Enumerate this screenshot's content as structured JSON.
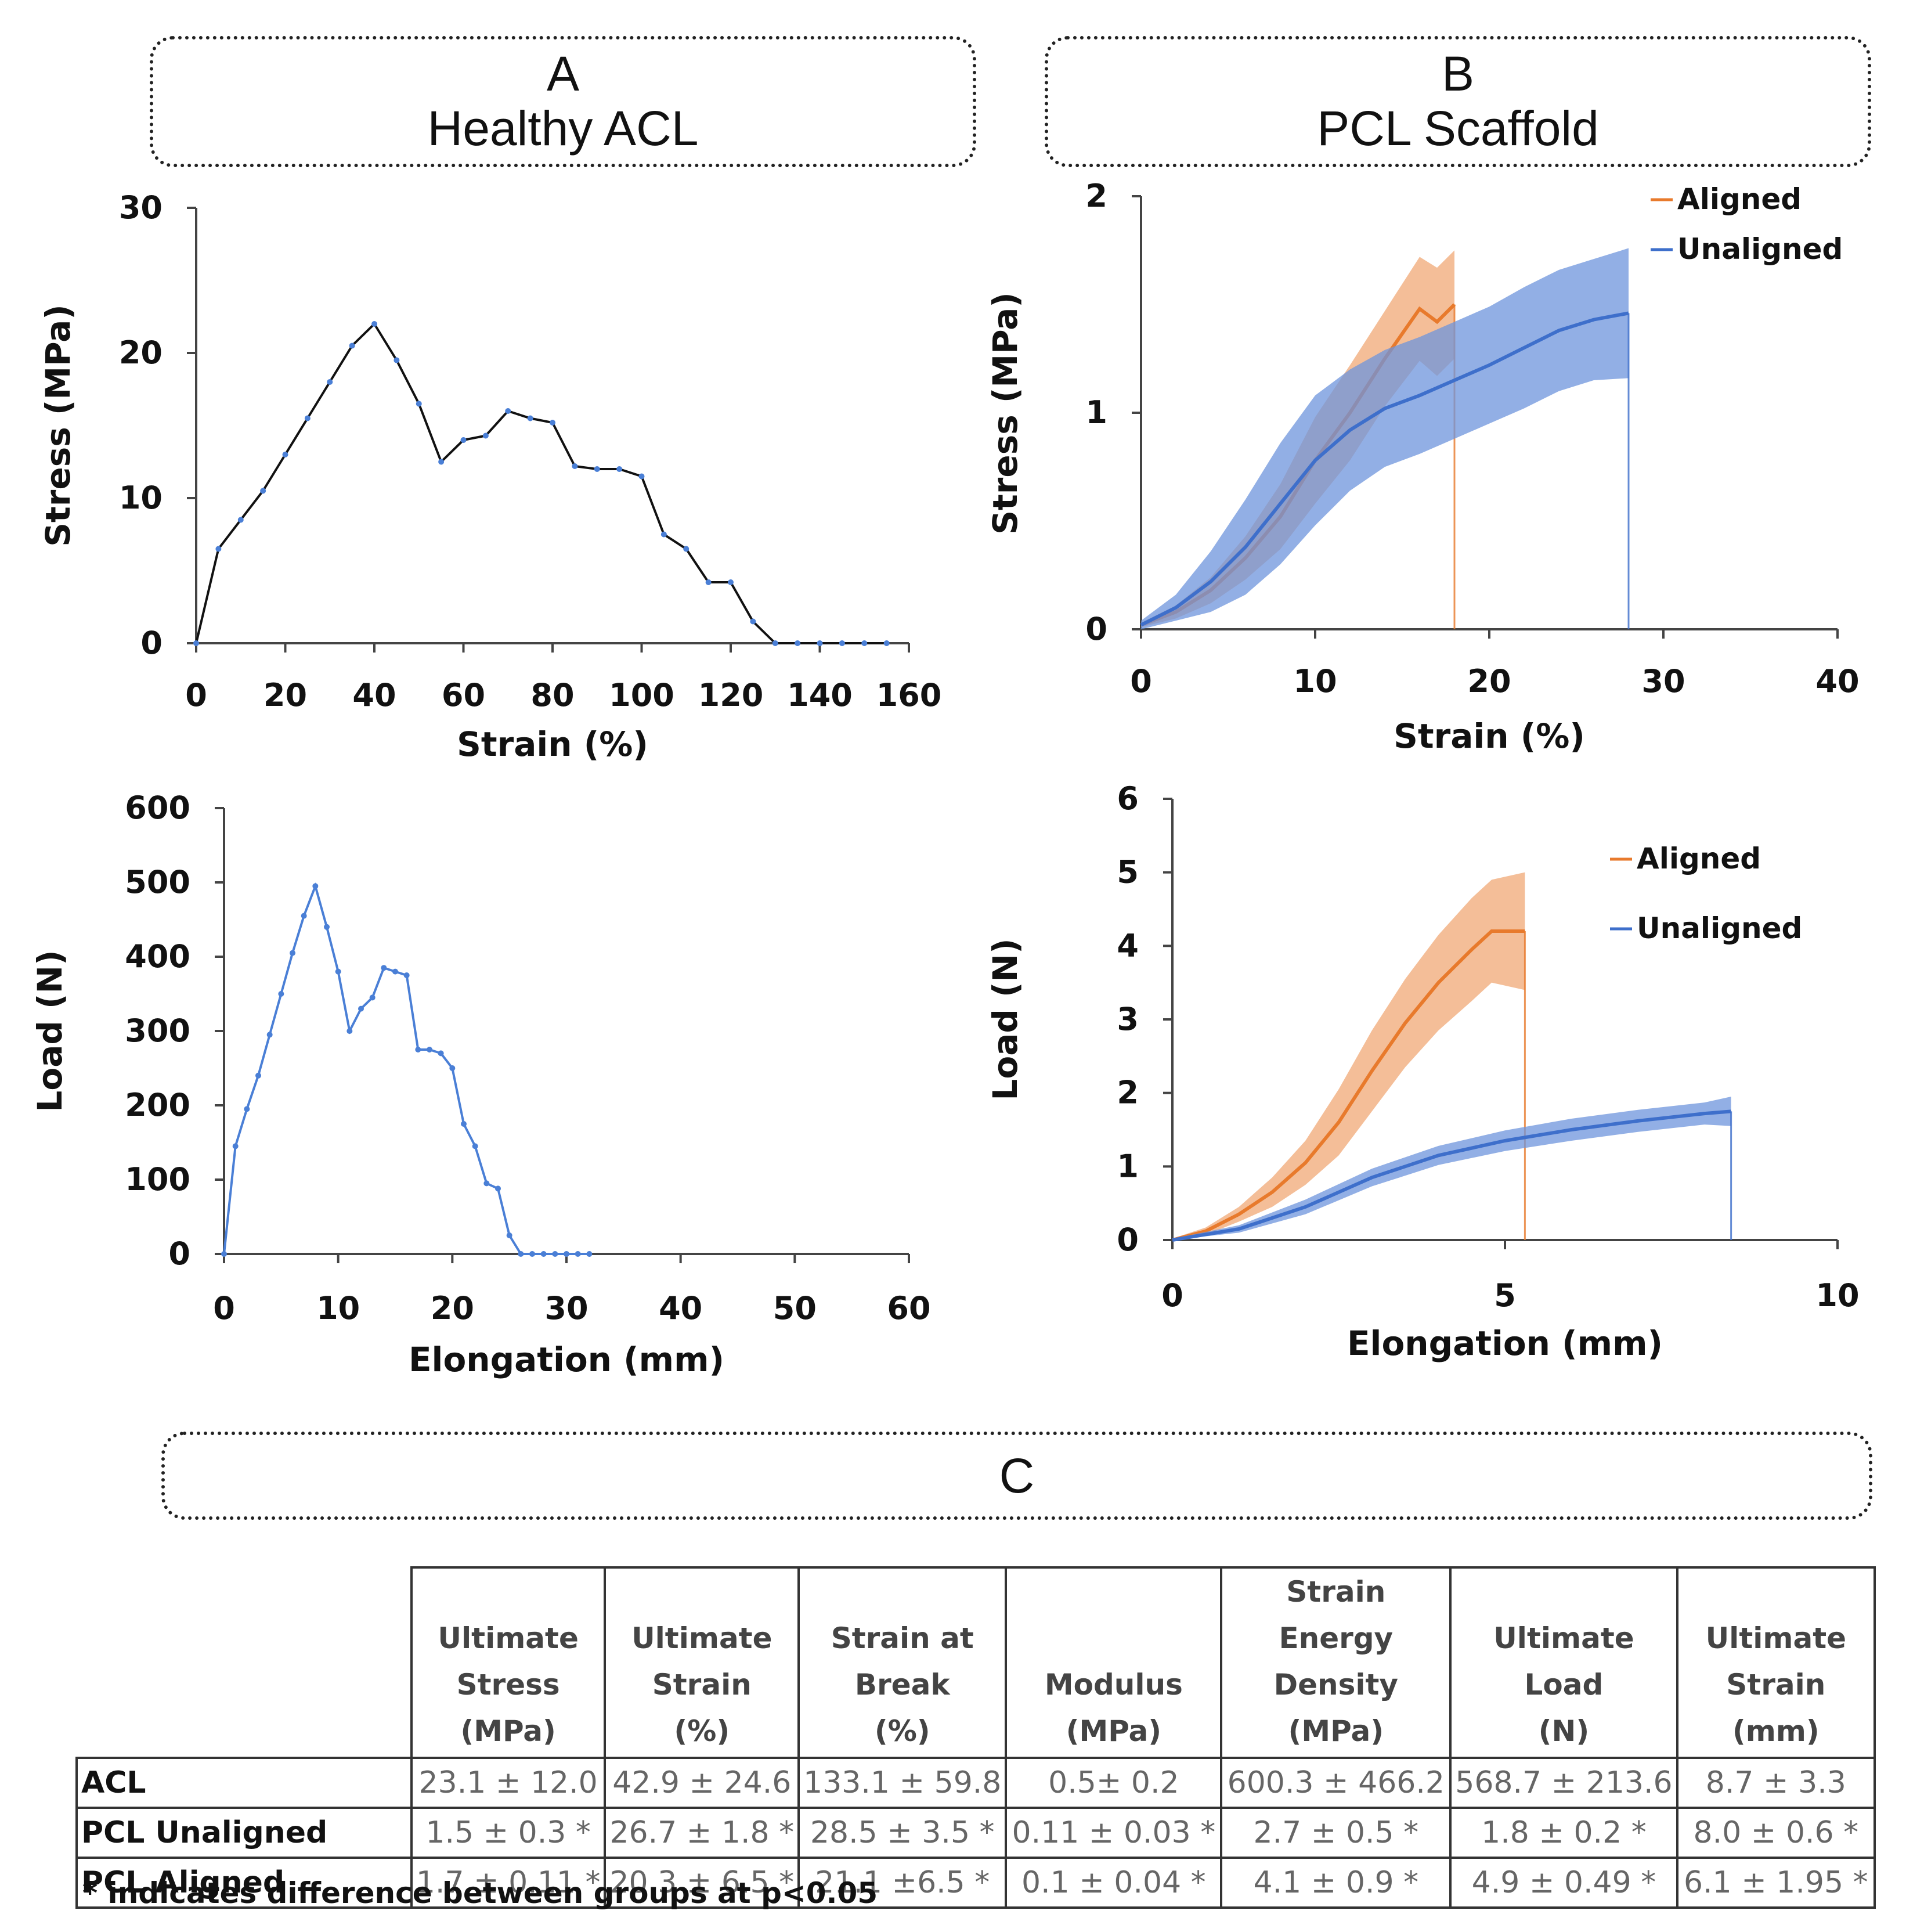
{
  "panels": {
    "a": {
      "letter": "A",
      "title": "Healthy ACL"
    },
    "b": {
      "letter": "B",
      "title": "PCL Scaffold"
    },
    "c": {
      "letter": "C"
    }
  },
  "colors": {
    "orange": "#e87a2c",
    "orange_band": "#f0a875",
    "blue": "#3e6fcb",
    "blue_band": "#6d94dc",
    "blue_marker": "#4a7fd6"
  },
  "chart_data": [
    {
      "id": "acl-stress-strain",
      "type": "line",
      "title": "",
      "xlabel": "Strain (%)",
      "ylabel": "Stress (MPa)",
      "xlim": [
        0,
        160
      ],
      "ylim": [
        0,
        30
      ],
      "xticks": [
        0,
        20,
        40,
        60,
        80,
        100,
        120,
        140,
        160
      ],
      "yticks": [
        0,
        10,
        20,
        30
      ],
      "series": [
        {
          "name": "Healthy ACL",
          "x": [
            0,
            5,
            10,
            15,
            20,
            25,
            30,
            35,
            40,
            45,
            50,
            55,
            60,
            65,
            70,
            75,
            80,
            85,
            90,
            95,
            100,
            105,
            110,
            115,
            120,
            125,
            130,
            135,
            140,
            145,
            150,
            155
          ],
          "y": [
            0,
            6.5,
            8.5,
            10.5,
            13,
            15.5,
            18,
            20.5,
            22,
            19.5,
            16.5,
            12.5,
            14,
            14.3,
            16,
            15.5,
            15.2,
            12.2,
            12,
            12,
            11.5,
            7.5,
            6.5,
            4.2,
            4.2,
            1.5,
            0,
            0,
            0,
            0,
            0,
            0
          ]
        }
      ]
    },
    {
      "id": "acl-load-elongation",
      "type": "line",
      "title": "",
      "xlabel": "Elongation (mm)",
      "ylabel": "Load (N)",
      "xlim": [
        0,
        60
      ],
      "ylim": [
        0,
        600
      ],
      "xticks": [
        0,
        10,
        20,
        30,
        40,
        50,
        60
      ],
      "yticks": [
        0,
        100,
        200,
        300,
        400,
        500,
        600
      ],
      "series": [
        {
          "name": "Healthy ACL",
          "x": [
            0,
            1,
            2,
            3,
            4,
            5,
            6,
            7,
            8,
            9,
            10,
            11,
            12,
            13,
            14,
            15,
            16,
            17,
            18,
            19,
            20,
            21,
            22,
            23,
            24,
            25,
            26,
            27,
            28,
            29,
            30,
            31,
            32
          ],
          "y": [
            0,
            145,
            195,
            240,
            295,
            350,
            405,
            455,
            495,
            440,
            380,
            300,
            330,
            345,
            385,
            380,
            375,
            275,
            275,
            270,
            250,
            175,
            145,
            95,
            88,
            25,
            0,
            0,
            0,
            0,
            0,
            0,
            0
          ]
        }
      ]
    },
    {
      "id": "pcl-stress-strain",
      "type": "line",
      "title": "",
      "xlabel": "Strain (%)",
      "ylabel": "Stress (MPa)",
      "xlim": [
        0,
        40
      ],
      "ylim": [
        0,
        2
      ],
      "xticks": [
        0,
        10,
        20,
        30,
        40
      ],
      "yticks": [
        0,
        1,
        2
      ],
      "legend": "top-right",
      "series": [
        {
          "name": "Aligned",
          "x": [
            0,
            2,
            4,
            6,
            8,
            10,
            12,
            14,
            16,
            17,
            18
          ],
          "y": [
            0.02,
            0.08,
            0.18,
            0.33,
            0.52,
            0.78,
            1.0,
            1.25,
            1.48,
            1.42,
            1.5
          ],
          "err": [
            0.01,
            0.03,
            0.06,
            0.1,
            0.15,
            0.2,
            0.22,
            0.22,
            0.24,
            0.25,
            0.25
          ]
        },
        {
          "name": "Unaligned",
          "x": [
            0,
            2,
            4,
            6,
            8,
            10,
            12,
            14,
            16,
            18,
            20,
            22,
            24,
            26,
            28
          ],
          "y": [
            0.02,
            0.1,
            0.22,
            0.38,
            0.58,
            0.78,
            0.92,
            1.02,
            1.08,
            1.15,
            1.22,
            1.3,
            1.38,
            1.43,
            1.46
          ],
          "err": [
            0.02,
            0.06,
            0.14,
            0.22,
            0.28,
            0.3,
            0.28,
            0.27,
            0.27,
            0.27,
            0.27,
            0.28,
            0.28,
            0.28,
            0.3
          ]
        }
      ]
    },
    {
      "id": "pcl-load-elongation",
      "type": "line",
      "title": "",
      "xlabel": "Elongation (mm)",
      "ylabel": "Load (N)",
      "xlim": [
        0,
        10
      ],
      "ylim": [
        0,
        6
      ],
      "xticks": [
        0,
        5,
        10
      ],
      "yticks": [
        0,
        1,
        2,
        3,
        4,
        5,
        6
      ],
      "legend": "top-right",
      "series": [
        {
          "name": "Aligned",
          "x": [
            0,
            0.5,
            1,
            1.5,
            2,
            2.5,
            3,
            3.5,
            4,
            4.5,
            4.8,
            5.3
          ],
          "y": [
            0,
            0.12,
            0.35,
            0.65,
            1.05,
            1.6,
            2.3,
            2.95,
            3.5,
            3.95,
            4.2,
            4.2
          ],
          "err": [
            0.02,
            0.05,
            0.1,
            0.2,
            0.3,
            0.45,
            0.55,
            0.6,
            0.65,
            0.7,
            0.7,
            0.8
          ]
        },
        {
          "name": "Unaligned",
          "x": [
            0,
            1,
            2,
            3,
            4,
            5,
            6,
            7,
            8,
            8.4
          ],
          "y": [
            0,
            0.15,
            0.45,
            0.85,
            1.15,
            1.35,
            1.5,
            1.62,
            1.72,
            1.75
          ],
          "err": [
            0.02,
            0.05,
            0.1,
            0.12,
            0.13,
            0.14,
            0.15,
            0.15,
            0.15,
            0.2
          ]
        }
      ]
    }
  ],
  "table": {
    "headers": [
      [
        "Ultimate",
        "Stress",
        "(MPa)"
      ],
      [
        "Ultimate",
        "Strain",
        "(%)"
      ],
      [
        "Strain at",
        "Break",
        "(%)"
      ],
      [
        "Modulus",
        "(MPa)"
      ],
      [
        "Strain Energy",
        "Density",
        "(MPa)"
      ],
      [
        "Ultimate",
        "Load",
        "(N)"
      ],
      [
        "Ultimate",
        "Strain (mm)"
      ]
    ],
    "rows": [
      {
        "label": "ACL",
        "cells": [
          "23.1 ± 12.0",
          "42.9 ± 24.6",
          "133.1 ± 59.8",
          "0.5± 0.2",
          "600.3 ± 466.2",
          "568.7 ± 213.6",
          "8.7 ± 3.3"
        ]
      },
      {
        "label": "PCL Unaligned",
        "cells": [
          "1.5 ± 0.3 *",
          "26.7 ± 1.8 *",
          "28.5 ± 3.5 *",
          "0.11 ± 0.03 *",
          "2.7 ± 0.5 *",
          "1.8 ± 0.2 *",
          "8.0 ± 0.6 *"
        ]
      },
      {
        "label": "PCL Aligned",
        "cells": [
          "1.7 ± 0.11 *",
          "20.3 ± 6.5 *",
          "21.1 ±6.5 *",
          "0.1 ± 0.04 *",
          "4.1 ± 0.9 *",
          "4.9 ± 0.49 *",
          "6.1 ± 1.95 *"
        ]
      }
    ],
    "footnote": "* indicates difference between groups at p<0.05"
  }
}
